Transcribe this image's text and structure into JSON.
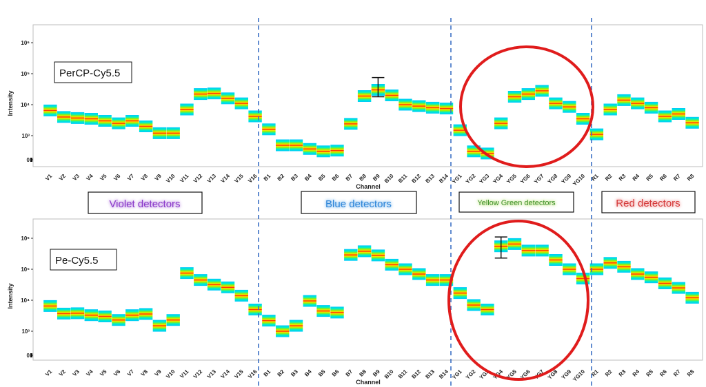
{
  "colors": {
    "violet": "#8a38c9",
    "blue": "#2f86d8",
    "yellow_green": "#3d8f2a",
    "red": "#d43a3a",
    "highlight_circle": "#e01c1c",
    "divider": "#3c6fc4",
    "heat": [
      "#00c8ff",
      "#00f0c8",
      "#9cf000",
      "#ffe000",
      "#ff8000",
      "#ff1800"
    ]
  },
  "group_labels": [
    {
      "label": "Violet detectors",
      "color": "#8a38c9",
      "glow": "#c59be6"
    },
    {
      "label": "Blue detectors",
      "color": "#2f86d8",
      "glow": "#8fc3f2"
    },
    {
      "label": "Yellow Green detectors",
      "color": "#3d8f2a",
      "glow": "#c6e888"
    },
    {
      "label": "Red detectors",
      "color": "#d43a3a",
      "glow": "#f3a6a6"
    }
  ],
  "chart_data": [
    {
      "type": "heatmap",
      "title": "PerCP-Cy5.5",
      "xlabel": "Channel",
      "ylabel": "Intensity",
      "yscale": "log",
      "ylim": [
        0,
        1000000
      ],
      "yticks": [
        "0",
        "10³",
        "10⁴",
        "10⁵",
        "10⁶"
      ],
      "categories": [
        "V1",
        "V2",
        "V3",
        "V4",
        "V5",
        "V6",
        "V7",
        "V8",
        "V9",
        "V10",
        "V11",
        "V12",
        "V13",
        "V14",
        "V15",
        "V16",
        "B1",
        "B2",
        "B3",
        "B4",
        "B5",
        "B6",
        "B7",
        "B8",
        "B9",
        "B10",
        "B11",
        "B12",
        "B13",
        "B14",
        "YG1",
        "YG2",
        "YG3",
        "YG4",
        "YG5",
        "YG6",
        "YG7",
        "YG8",
        "YG9",
        "YG10",
        "R1",
        "R2",
        "R3",
        "R4",
        "R5",
        "R6",
        "R7",
        "R8"
      ],
      "values": [
        6500,
        4000,
        3700,
        3500,
        3000,
        2500,
        3000,
        2000,
        1200,
        1200,
        7000,
        22000,
        23000,
        16000,
        11000,
        4200,
        1600,
        600,
        600,
        450,
        350,
        380,
        2400,
        19000,
        30000,
        20000,
        10000,
        9000,
        8000,
        7500,
        1500,
        350,
        260,
        2500,
        18000,
        22000,
        28000,
        11000,
        8500,
        3500,
        1100,
        7000,
        14000,
        11000,
        8000,
        4200,
        5000,
        2600
      ],
      "error_bar": {
        "channel": "B9",
        "low": 18000,
        "high": 75000
      },
      "highlight": "YG1–YG10"
    },
    {
      "type": "heatmap",
      "title": "Pe-Cy5.5",
      "xlabel": "Channel",
      "ylabel": "Intensity",
      "yscale": "log",
      "ylim": [
        0,
        1000000
      ],
      "yticks": [
        "0",
        "10³",
        "10⁴",
        "10⁵",
        "10⁶"
      ],
      "categories": [
        "V1",
        "V2",
        "V3",
        "V4",
        "V5",
        "V6",
        "V7",
        "V8",
        "V9",
        "V10",
        "V11",
        "V12",
        "V13",
        "V14",
        "V15",
        "V16",
        "B1",
        "B2",
        "B3",
        "B4",
        "B5",
        "B6",
        "B7",
        "B8",
        "B9",
        "B10",
        "B11",
        "B12",
        "B13",
        "B14",
        "YG1",
        "YG2",
        "YG3",
        "YG4",
        "YG5",
        "YG6",
        "YG7",
        "YG8",
        "YG9",
        "YG10",
        "R1",
        "R2",
        "R3",
        "R4",
        "R5",
        "R6",
        "R7",
        "R8"
      ],
      "values": [
        6500,
        3700,
        3800,
        3300,
        3000,
        2300,
        3300,
        3600,
        1500,
        2300,
        75000,
        45000,
        32000,
        26000,
        14000,
        5000,
        2200,
        1000,
        1500,
        9500,
        4500,
        4000,
        290000,
        380000,
        280000,
        140000,
        100000,
        70000,
        45000,
        45000,
        17000,
        7000,
        5000,
        550000,
        650000,
        400000,
        400000,
        200000,
        100000,
        50000,
        100000,
        160000,
        120000,
        70000,
        55000,
        35000,
        25000,
        12000
      ],
      "error_bar": {
        "channel": "YG4",
        "low": 230000,
        "high": 1100000
      },
      "highlight": "YG4–YG10"
    }
  ]
}
